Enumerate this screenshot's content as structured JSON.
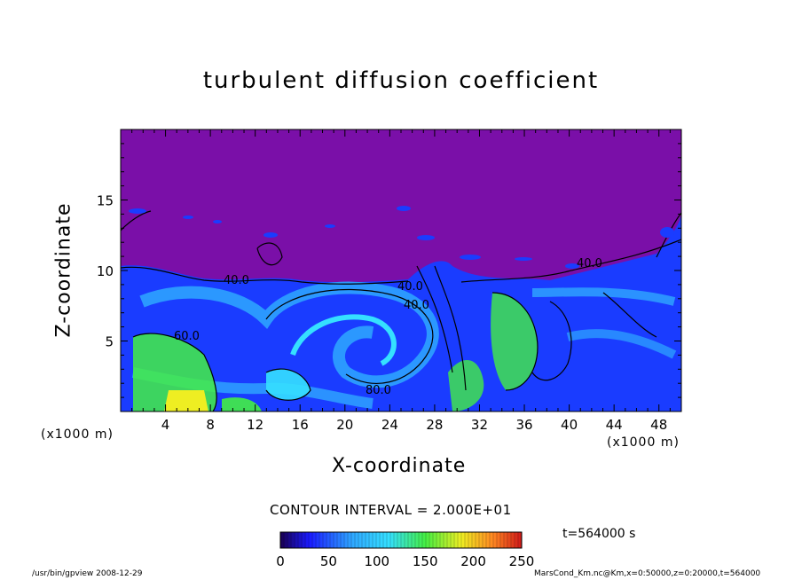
{
  "chart_data": {
    "type": "heatmap",
    "title": "turbulent diffusion coefficient",
    "xlabel": "X-coordinate",
    "ylabel": "Z-coordinate",
    "x_unit_label": "(x1000 m)",
    "x_ticks": [
      4,
      8,
      12,
      16,
      20,
      24,
      28,
      32,
      36,
      40,
      44,
      48
    ],
    "y_ticks": [
      5,
      10,
      15
    ],
    "xlim": [
      0,
      50
    ],
    "ylim": [
      0,
      20
    ],
    "contour_interval_text": "CONTOUR INTERVAL = 2.000E+01",
    "contour_labels": [
      "40.0",
      "40.0",
      "60.0",
      "80.0",
      "40.0",
      "40.0"
    ],
    "colorbar": {
      "min": 0,
      "max": 250,
      "ticks": [
        "0",
        "50",
        "100",
        "150",
        "200",
        "250"
      ]
    },
    "time_text": "t=564000 s",
    "colors": {
      "background_top": "#7a0fa8",
      "low": "#1a3cff",
      "mid": "#2fa8ff",
      "cyan": "#35e0ff",
      "green": "#44ee44",
      "yellow": "#eeee22"
    }
  },
  "footer": {
    "left": "/usr/bin/gpview   2008-12-29",
    "right": "MarsCond_Km.nc@Km,x=0:50000,z=0:20000,t=564000"
  }
}
